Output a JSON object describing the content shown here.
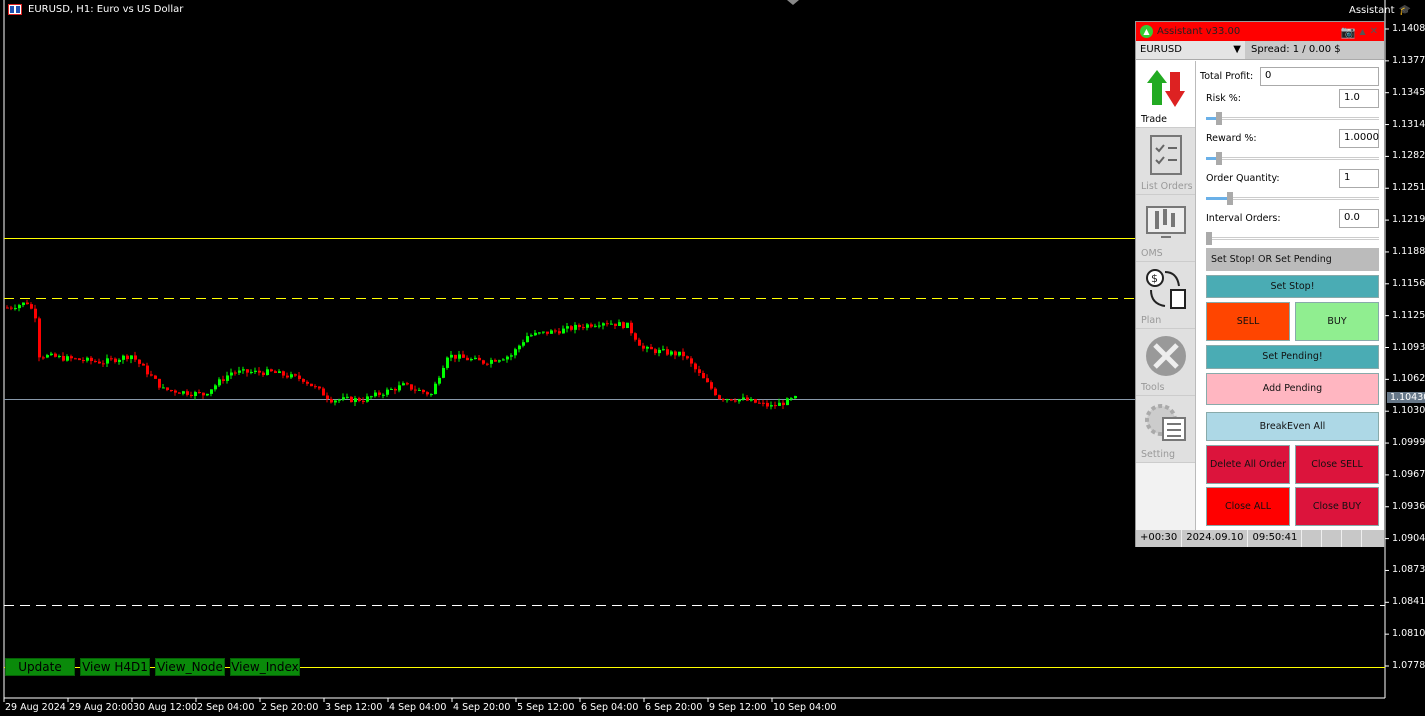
{
  "window": {
    "title": "EURUSD, H1:  Euro vs US Dollar",
    "assistant_label": "Assistant"
  },
  "chart": {
    "symbol": "EURUSD",
    "timeframe": "H1",
    "price_labels": [
      "1.14085",
      "1.13770",
      "1.13455",
      "1.13140",
      "1.12825",
      "1.12510",
      "1.12195",
      "1.11880",
      "1.11565",
      "1.11250",
      "1.10935",
      "1.10620",
      "1.10305",
      "1.09990",
      "1.09675",
      "1.09360",
      "1.09045",
      "1.08730",
      "1.08415",
      "1.08100",
      "1.07785"
    ],
    "current_price": "1.10430",
    "time_labels": [
      "29 Aug 2024",
      "29 Aug 20:00",
      "30 Aug 12:00",
      "2 Sep 04:00",
      "2 Sep 20:00",
      "3 Sep 12:00",
      "4 Sep 04:00",
      "4 Sep 20:00",
      "5 Sep 12:00",
      "6 Sep 04:00",
      "6 Sep 20:00",
      "9 Sep 12:00",
      "10 Sep 04:00"
    ],
    "price_path": [
      [
        0,
        1.1133
      ],
      [
        5,
        1.1138
      ],
      [
        7,
        1.1125
      ],
      [
        8,
        1.1086
      ],
      [
        14,
        1.1083
      ],
      [
        24,
        1.1079
      ],
      [
        31,
        1.1086
      ],
      [
        39,
        1.1052
      ],
      [
        49,
        1.1047
      ],
      [
        56,
        1.1069
      ],
      [
        66,
        1.1069
      ],
      [
        74,
        1.1062
      ],
      [
        81,
        1.1042
      ],
      [
        89,
        1.1042
      ],
      [
        99,
        1.1056
      ],
      [
        106,
        1.1047
      ],
      [
        110,
        1.1086
      ],
      [
        119,
        1.1079
      ],
      [
        126,
        1.1086
      ],
      [
        130,
        1.1105
      ],
      [
        139,
        1.1111
      ],
      [
        149,
        1.1119
      ],
      [
        155,
        1.1115
      ],
      [
        159,
        1.1092
      ],
      [
        169,
        1.1086
      ],
      [
        174,
        1.1062
      ],
      [
        178,
        1.1044
      ],
      [
        184,
        1.1042
      ],
      [
        191,
        1.1035
      ],
      [
        197,
        1.1043
      ]
    ],
    "lines": [
      {
        "price": 1.12018,
        "color": "#ffff00",
        "style": "solid"
      },
      {
        "price": 1.11425,
        "color": "#ffff00",
        "style": "dashed"
      },
      {
        "price": 1.1043,
        "color": "#8899aa",
        "style": "solid"
      },
      {
        "price": 1.0839,
        "color": "#ffffff",
        "style": "dashed"
      },
      {
        "price": 1.07775,
        "color": "#ffff00",
        "style": "solid"
      }
    ],
    "bull_color": "#00ff00",
    "bear_color": "#ff0000",
    "buttons": [
      "Update",
      "View H4D1",
      "View_Node",
      "View_Index"
    ]
  },
  "panel": {
    "title": "Assistant v33.00",
    "symbol": "EURUSD",
    "spread": "Spread: 1 / 0.00 $",
    "tabs": [
      "Trade",
      "List Orders",
      "OMS",
      "Plan",
      "Tools",
      "Setting"
    ],
    "total_profit_label": "Total Profit:",
    "total_profit": "0",
    "risk_label": "Risk %:",
    "risk": "1.0",
    "reward_label": "Reward %:",
    "reward": "1.0000",
    "qty_label": "Order Quantity:",
    "qty": "1",
    "interval_label": "Interval Orders:",
    "interval": "0.0",
    "sliders": {
      "risk": 0.06,
      "reward": 0.06,
      "qty": 0.12,
      "interval": 0.0
    },
    "buttons": {
      "mode": "Set Stop! OR Set Pending",
      "set_stop": "Set Stop!",
      "sell": "SELL",
      "buy": "BUY",
      "set_pending": "Set Pending!",
      "add_pending": "Add Pending",
      "breakeven": "BreakEven All",
      "delete_all": "Delete All Order",
      "close_sell": "Close SELL",
      "close_all": "Close ALL",
      "close_buy": "Close BUY"
    },
    "status": {
      "offset": "+00:30",
      "date": "2024.09.10",
      "time": "09:50:41"
    },
    "icon_labels": {
      "buy": "BUY",
      "sell": "SELL"
    }
  }
}
